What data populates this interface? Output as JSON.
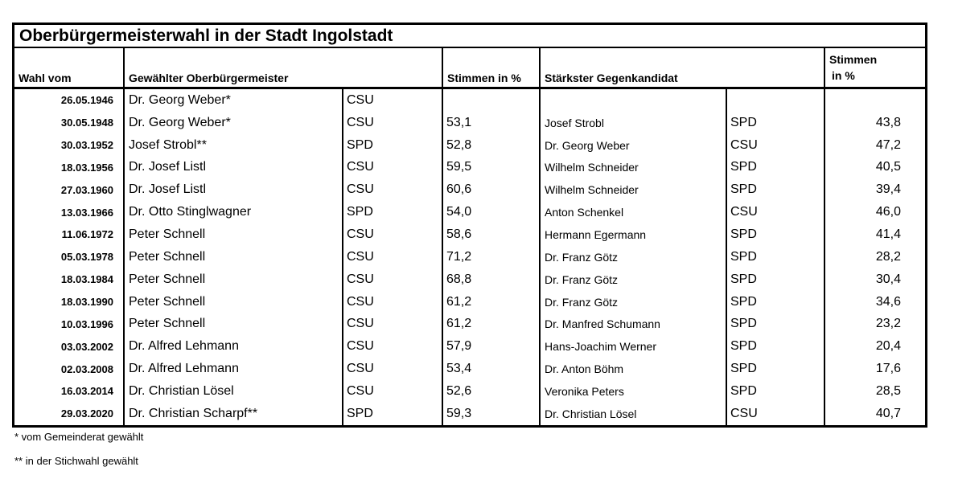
{
  "title": "Oberbürgermeisterwahl in der Stadt Ingolstadt",
  "table": {
    "headers": {
      "wahl_vom": "Wahl vom",
      "gewaehlter_ob": "Gewählter Oberbürgermeister",
      "stimmen_winner": "Stimmen in %",
      "gegenkandidat": "Stärkster Gegenkandidat",
      "stimmen_opponent_line1": "Stimmen",
      "stimmen_opponent_line2": "in %"
    },
    "rows": [
      {
        "date": "26.05.1946",
        "winner": "Dr. Georg Weber*",
        "winner_party": "CSU",
        "winner_pct": "",
        "opponent": "",
        "opponent_party": "",
        "opponent_pct": ""
      },
      {
        "date": "30.05.1948",
        "winner": "Dr. Georg Weber*",
        "winner_party": "CSU",
        "winner_pct": "53,1",
        "opponent": "Josef Strobl",
        "opponent_party": "SPD",
        "opponent_pct": "43,8"
      },
      {
        "date": "30.03.1952",
        "winner": "Josef Strobl**",
        "winner_party": "SPD",
        "winner_pct": "52,8",
        "opponent": "Dr. Georg Weber",
        "opponent_party": "CSU",
        "opponent_pct": "47,2"
      },
      {
        "date": "18.03.1956",
        "winner": "Dr. Josef Listl",
        "winner_party": "CSU",
        "winner_pct": "59,5",
        "opponent": "Wilhelm Schneider",
        "opponent_party": "SPD",
        "opponent_pct": "40,5"
      },
      {
        "date": "27.03.1960",
        "winner": "Dr. Josef Listl",
        "winner_party": "CSU",
        "winner_pct": "60,6",
        "opponent": "Wilhelm Schneider",
        "opponent_party": "SPD",
        "opponent_pct": "39,4"
      },
      {
        "date": "13.03.1966",
        "winner": "Dr. Otto Stinglwagner",
        "winner_party": "SPD",
        "winner_pct": "54,0",
        "opponent": "Anton Schenkel",
        "opponent_party": "CSU",
        "opponent_pct": "46,0"
      },
      {
        "date": "11.06.1972",
        "winner": "Peter Schnell",
        "winner_party": "CSU",
        "winner_pct": "58,6",
        "opponent": "Hermann Egermann",
        "opponent_party": "SPD",
        "opponent_pct": "41,4"
      },
      {
        "date": "05.03.1978",
        "winner": "Peter Schnell",
        "winner_party": "CSU",
        "winner_pct": "71,2",
        "opponent": "Dr. Franz Götz",
        "opponent_party": "SPD",
        "opponent_pct": "28,2"
      },
      {
        "date": "18.03.1984",
        "winner": "Peter Schnell",
        "winner_party": "CSU",
        "winner_pct": "68,8",
        "opponent": "Dr. Franz Götz",
        "opponent_party": "SPD",
        "opponent_pct": "30,4"
      },
      {
        "date": "18.03.1990",
        "winner": "Peter Schnell",
        "winner_party": "CSU",
        "winner_pct": "61,2",
        "opponent": "Dr. Franz Götz",
        "opponent_party": "SPD",
        "opponent_pct": "34,6"
      },
      {
        "date": "10.03.1996",
        "winner": "Peter Schnell",
        "winner_party": "CSU",
        "winner_pct": "61,2",
        "opponent": "Dr. Manfred Schumann",
        "opponent_party": "SPD",
        "opponent_pct": "23,2"
      },
      {
        "date": "03.03.2002",
        "winner": "Dr. Alfred Lehmann",
        "winner_party": "CSU",
        "winner_pct": "57,9",
        "opponent": "Hans-Joachim Werner",
        "opponent_party": "SPD",
        "opponent_pct": "20,4"
      },
      {
        "date": "02.03.2008",
        "winner": "Dr. Alfred Lehmann",
        "winner_party": "CSU",
        "winner_pct": "53,4",
        "opponent": "Dr. Anton Böhm",
        "opponent_party": "SPD",
        "opponent_pct": "17,6"
      },
      {
        "date": "16.03.2014",
        "winner": "Dr. Christian Lösel",
        "winner_party": "CSU",
        "winner_pct": "52,6",
        "opponent": "Veronika Peters",
        "opponent_party": "SPD",
        "opponent_pct": "28,5"
      },
      {
        "date": "29.03.2020",
        "winner": "Dr. Christian Scharpf**",
        "winner_party": "SPD",
        "winner_pct": "59,3",
        "opponent": "Dr. Christian Lösel",
        "opponent_party": "CSU",
        "opponent_pct": "40,7"
      }
    ]
  },
  "footnotes": [
    "* vom Gemeinderat gewählt",
    "** in der Stichwahl gewählt"
  ],
  "colors": {
    "text": "#000000",
    "border": "#000000",
    "background": "#ffffff"
  }
}
